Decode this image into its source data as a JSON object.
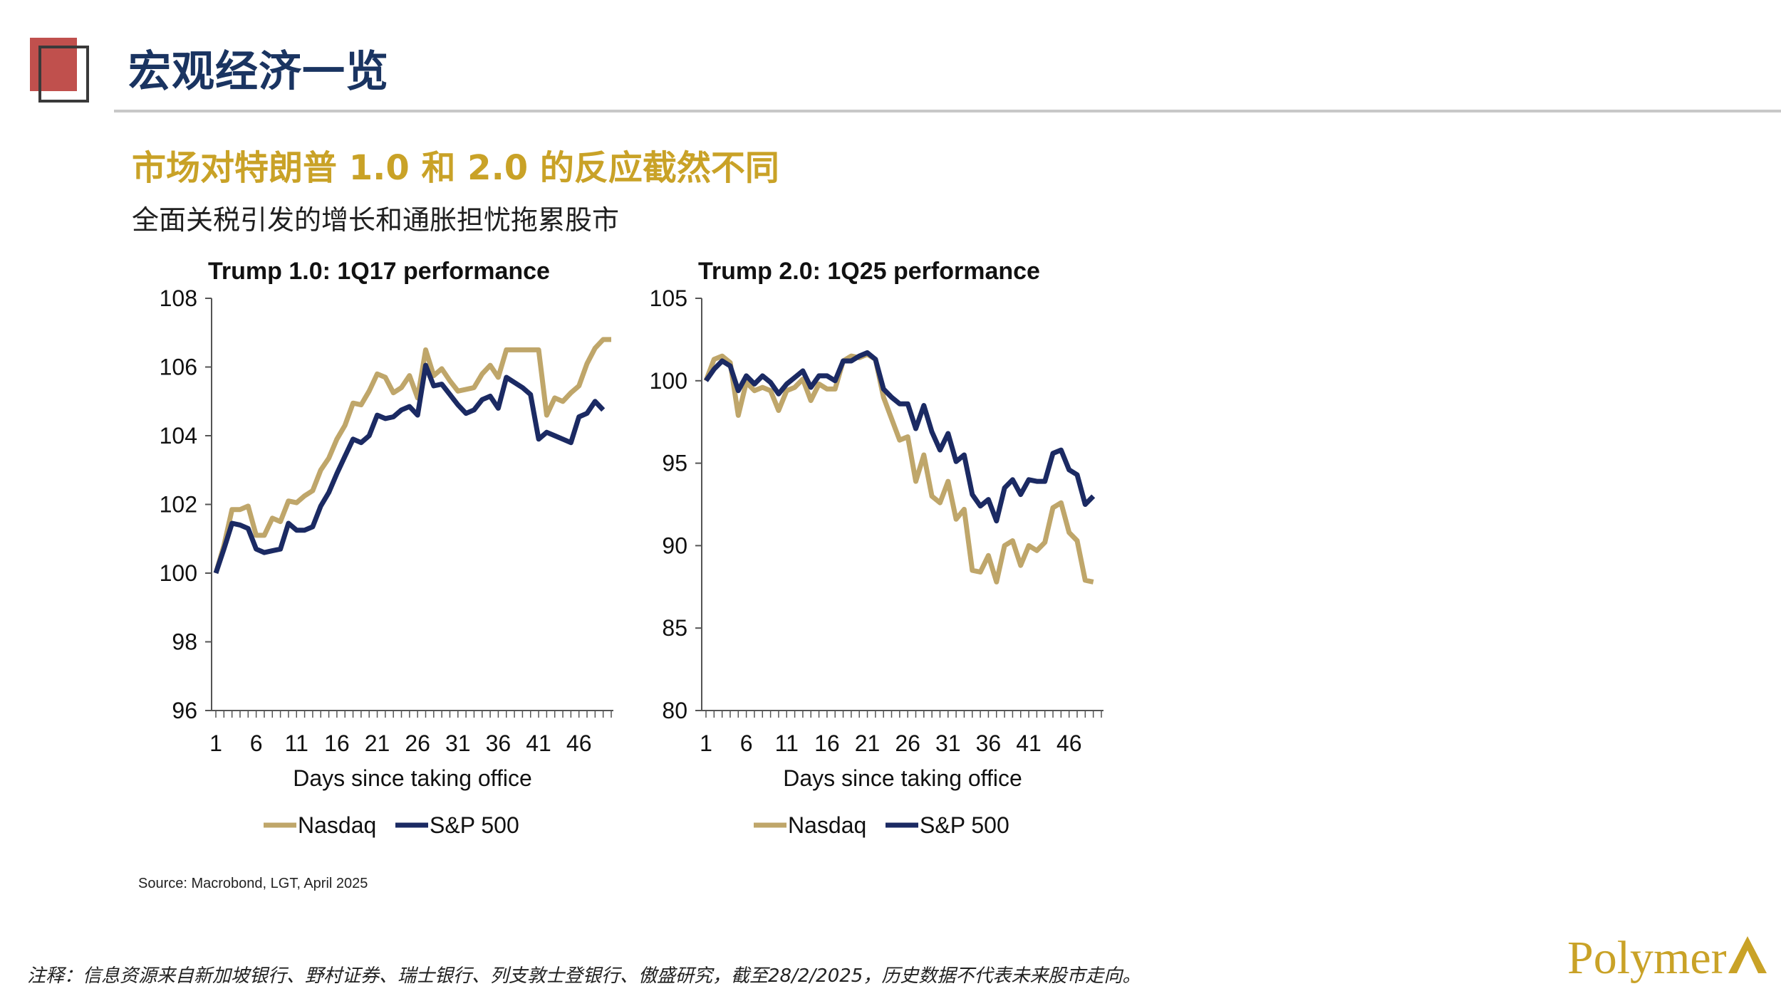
{
  "header": {
    "title": "宏观经济一览"
  },
  "headline": "市场对特朗普 1.0 和 2.0 的反应截然不同",
  "subheadline": "全面关税引发的增长和通胀担忧拖累股市",
  "source": "Source: Macrobond, LGT, April 2025",
  "footnote": "注释：信息资源来自新加坡银行、野村证券、瑞士银行、列支敦士登银行、傲盛研究，截至28/2/2025，历史数据不代表未来股市走向。",
  "logo": {
    "text": "Polymer"
  },
  "colors": {
    "nasdaq": "#bfa66a",
    "sp500": "#1b2a63",
    "title": "#1a3461",
    "accent": "#c9a227",
    "red": "#c0504d"
  },
  "chart_data": [
    {
      "type": "line",
      "title": "Trump 1.0:  1Q17 performance",
      "xlabel": "Days since taking office",
      "ylabel": "",
      "ylim": [
        96,
        108
      ],
      "yticks": [
        "96",
        "98",
        "100",
        "102",
        "104",
        "106",
        "108"
      ],
      "xticks": [
        "1",
        "6",
        "11",
        "16",
        "21",
        "26",
        "31",
        "36",
        "41",
        "46"
      ],
      "legend": "bottom",
      "series": [
        {
          "name": "Nasdaq",
          "color": "#bfa66a",
          "values": [
            100,
            100.8,
            101.85,
            101.85,
            101.95,
            101.1,
            101.1,
            101.6,
            101.5,
            102.1,
            102.05,
            102.25,
            102.4,
            103.0,
            103.35,
            103.9,
            104.3,
            104.95,
            104.9,
            105.3,
            105.8,
            105.7,
            105.25,
            105.4,
            105.75,
            105.1,
            106.5,
            105.75,
            105.95,
            105.6,
            105.3,
            105.35,
            105.4,
            105.8,
            106.05,
            105.7,
            106.5,
            106.5,
            106.5,
            106.5,
            106.5,
            104.6,
            105.1,
            105.0,
            105.25,
            105.45,
            106.1,
            106.55,
            106.8,
            106.8
          ]
        },
        {
          "name": "S&P 500",
          "color": "#1b2a63",
          "values": [
            100,
            100.7,
            101.45,
            101.4,
            101.3,
            100.7,
            100.6,
            100.65,
            100.7,
            101.45,
            101.25,
            101.25,
            101.35,
            101.95,
            102.35,
            102.9,
            103.4,
            103.9,
            103.8,
            104.0,
            104.6,
            104.5,
            104.55,
            104.75,
            104.85,
            104.6,
            106.05,
            105.45,
            105.5,
            105.2,
            104.9,
            104.65,
            104.75,
            105.05,
            105.15,
            104.8,
            105.7,
            105.55,
            105.4,
            105.2,
            103.9,
            104.1,
            104.0,
            103.9,
            103.8,
            104.55,
            104.65,
            105.0,
            104.75
          ]
        }
      ]
    },
    {
      "type": "line",
      "title": "Trump 2.0:  1Q25 performance",
      "xlabel": "Days since taking office",
      "ylabel": "",
      "ylim": [
        80,
        105
      ],
      "yticks": [
        "80",
        "85",
        "90",
        "95",
        "100",
        "105"
      ],
      "xticks": [
        "1",
        "6",
        "11",
        "16",
        "21",
        "26",
        "31",
        "36",
        "41",
        "46"
      ],
      "legend": "bottom",
      "series": [
        {
          "name": "Nasdaq",
          "color": "#bfa66a",
          "values": [
            100,
            101.3,
            101.5,
            101.1,
            97.9,
            99.9,
            99.4,
            99.6,
            99.4,
            98.2,
            99.4,
            99.6,
            100.1,
            98.8,
            99.8,
            99.5,
            99.5,
            101.2,
            101.5,
            101.4,
            101.6,
            101.3,
            99.0,
            97.7,
            96.4,
            96.6,
            93.9,
            95.5,
            93.0,
            92.6,
            93.9,
            91.6,
            92.2,
            88.5,
            88.4,
            89.4,
            87.8,
            90.0,
            90.3,
            88.8,
            90.0,
            89.7,
            90.2,
            92.3,
            92.6,
            90.8,
            90.3,
            87.9,
            87.8
          ]
        },
        {
          "name": "S&P 500",
          "color": "#1b2a63",
          "values": [
            100,
            100.7,
            101.2,
            100.9,
            99.4,
            100.3,
            99.8,
            100.3,
            99.9,
            99.2,
            99.8,
            100.2,
            100.6,
            99.6,
            100.3,
            100.3,
            100.0,
            101.2,
            101.2,
            101.5,
            101.7,
            101.3,
            99.5,
            99.0,
            98.6,
            98.6,
            97.1,
            98.5,
            96.9,
            95.8,
            96.8,
            95.1,
            95.5,
            93.1,
            92.4,
            92.8,
            91.5,
            93.5,
            94.0,
            93.1,
            94.0,
            93.9,
            93.9,
            95.6,
            95.8,
            94.6,
            94.3,
            92.5,
            93.0
          ]
        }
      ]
    }
  ]
}
